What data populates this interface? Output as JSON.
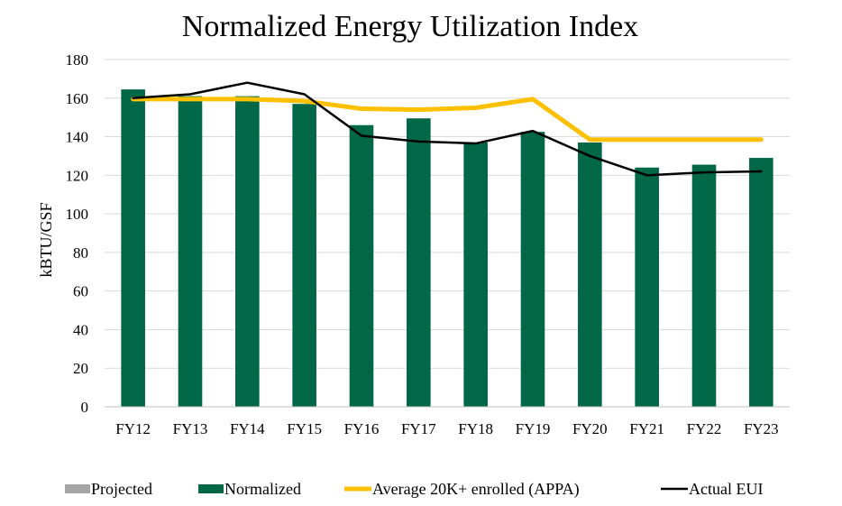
{
  "chart_data": {
    "type": "bar",
    "title": "Normalized Energy Utilization Index",
    "ylabel": "kBTU/GSF",
    "xlabel": "",
    "ylim": [
      0,
      180
    ],
    "yticks": [
      0,
      20,
      40,
      60,
      80,
      100,
      120,
      140,
      160,
      180
    ],
    "grid": true,
    "legend_position": "bottom",
    "categories": [
      "FY12",
      "FY13",
      "FY14",
      "FY15",
      "FY16",
      "FY17",
      "FY18",
      "FY19",
      "FY20",
      "FY21",
      "FY22",
      "FY23"
    ],
    "series": [
      {
        "name": "Projected",
        "kind": "bar",
        "color": "#a6a6a6",
        "values": [
          null,
          null,
          null,
          null,
          null,
          null,
          null,
          null,
          null,
          null,
          null,
          null
        ]
      },
      {
        "name": "Normalized",
        "kind": "bar",
        "color": "#006747",
        "values": [
          164.5,
          161,
          161,
          157,
          146,
          149.5,
          137,
          142.5,
          137,
          124,
          125.5,
          129
        ]
      },
      {
        "name": "Average 20K+ enrolled (APPA)",
        "kind": "line",
        "color": "#ffc000",
        "values": [
          159.5,
          159.5,
          159.5,
          158.5,
          154.5,
          154,
          155,
          159.5,
          138.5,
          138.5,
          138.5,
          138.5
        ]
      },
      {
        "name": "Actual EUI",
        "kind": "line",
        "color": "#000000",
        "values": [
          160,
          162,
          168,
          162,
          140.5,
          137.5,
          136.5,
          143,
          130,
          120,
          121.5,
          122
        ]
      }
    ]
  }
}
